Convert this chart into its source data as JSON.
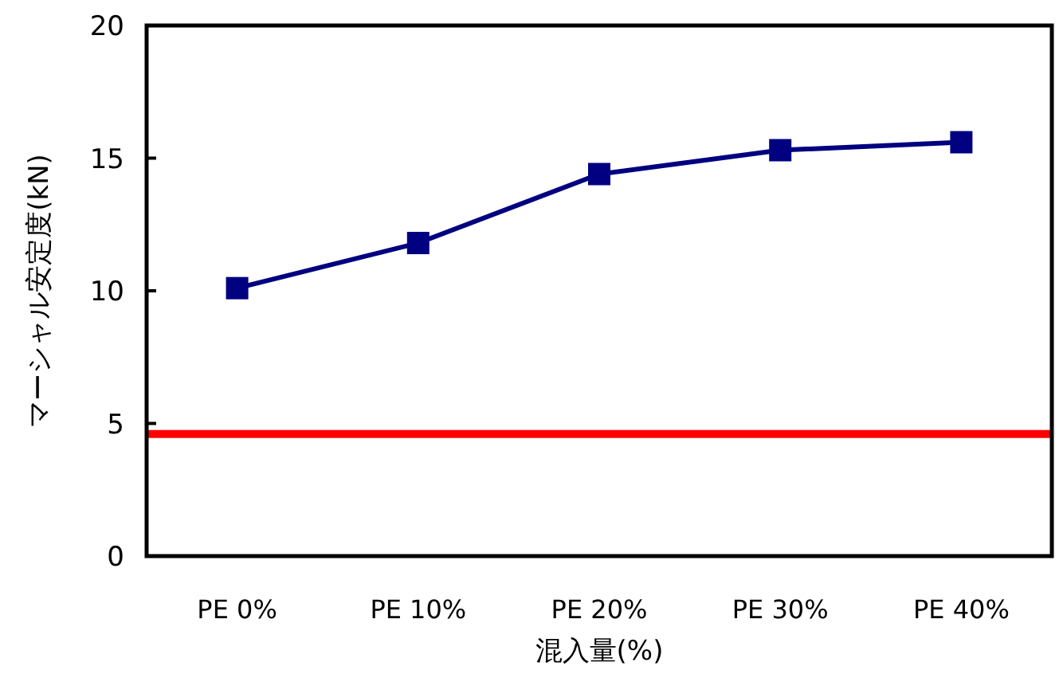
{
  "chart_data": {
    "type": "line",
    "xlabel": "混入量(%)",
    "ylabel": "マーシャル安定度(kN)",
    "categories": [
      "PE 0%",
      "PE 10%",
      "PE 20%",
      "PE 30%",
      "PE 40%"
    ],
    "series": [
      {
        "color": "#000080",
        "values": [
          10.1,
          11.8,
          14.4,
          15.3,
          15.6
        ]
      }
    ],
    "marker": "square",
    "line_style": "solid",
    "ylim": [
      0,
      20
    ],
    "yticks": [
      0,
      5,
      10,
      15,
      20
    ],
    "ref_lines": [
      {
        "axis": "y",
        "value": 4.6,
        "color": "#ff0000"
      }
    ]
  }
}
